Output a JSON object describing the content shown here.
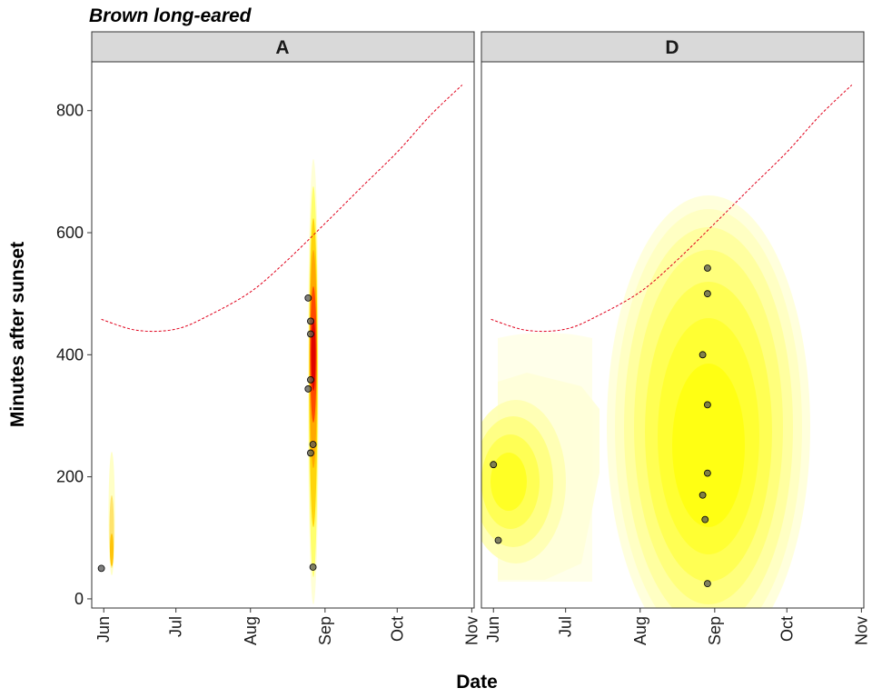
{
  "chart_data": {
    "type": "scatter",
    "title": "Brown long-eared",
    "xlabel": "Date",
    "ylabel": "Minutes after sunset",
    "x_ticks": [
      "Jun",
      "Jul",
      "Aug",
      "Sep",
      "Oct",
      "Nov"
    ],
    "x_tick_dates": [
      "2020-06-01",
      "2020-07-01",
      "2020-08-01",
      "2020-09-01",
      "2020-10-01",
      "2020-11-01"
    ],
    "xlim": [
      "2020-05-27",
      "2020-11-02"
    ],
    "y_ticks": [
      0,
      200,
      400,
      600,
      800
    ],
    "ylim": [
      -15,
      880
    ],
    "grid": false,
    "point_color": "#555555",
    "density_colors": [
      "#ffffe0",
      "#ffff00",
      "#ffa500",
      "#ff0000",
      "#000000"
    ],
    "sunrise_line_color": "#e0001b",
    "panels": [
      {
        "label": "A",
        "points": [
          {
            "x": "2020-05-31",
            "y": 50
          },
          {
            "x": "2020-08-25",
            "y": 493
          },
          {
            "x": "2020-08-26",
            "y": 455
          },
          {
            "x": "2020-08-26",
            "y": 434
          },
          {
            "x": "2020-08-26",
            "y": 359
          },
          {
            "x": "2020-08-25",
            "y": 344
          },
          {
            "x": "2020-08-27",
            "y": 253
          },
          {
            "x": "2020-08-26",
            "y": 239
          },
          {
            "x": "2020-08-27",
            "y": 52
          }
        ],
        "sunrise_curve": [
          {
            "x": "2020-05-31",
            "y": 458
          },
          {
            "x": "2020-06-15",
            "y": 440
          },
          {
            "x": "2020-07-01",
            "y": 442
          },
          {
            "x": "2020-07-15",
            "y": 465
          },
          {
            "x": "2020-08-01",
            "y": 503
          },
          {
            "x": "2020-08-15",
            "y": 550
          },
          {
            "x": "2020-09-01",
            "y": 615
          },
          {
            "x": "2020-09-15",
            "y": 670
          },
          {
            "x": "2020-10-01",
            "y": 732
          },
          {
            "x": "2020-10-15",
            "y": 793
          },
          {
            "x": "2020-10-28",
            "y": 842
          }
        ]
      },
      {
        "label": "D",
        "points": [
          {
            "x": "2020-06-01",
            "y": 220
          },
          {
            "x": "2020-06-03",
            "y": 96
          },
          {
            "x": "2020-08-29",
            "y": 542
          },
          {
            "x": "2020-08-29",
            "y": 500
          },
          {
            "x": "2020-08-27",
            "y": 400
          },
          {
            "x": "2020-08-29",
            "y": 318
          },
          {
            "x": "2020-08-29",
            "y": 206
          },
          {
            "x": "2020-08-27",
            "y": 170
          },
          {
            "x": "2020-08-28",
            "y": 130
          },
          {
            "x": "2020-08-29",
            "y": 25
          }
        ],
        "sunrise_curve": [
          {
            "x": "2020-05-31",
            "y": 458
          },
          {
            "x": "2020-06-15",
            "y": 440
          },
          {
            "x": "2020-07-01",
            "y": 442
          },
          {
            "x": "2020-07-15",
            "y": 465
          },
          {
            "x": "2020-08-01",
            "y": 503
          },
          {
            "x": "2020-08-15",
            "y": 550
          },
          {
            "x": "2020-09-01",
            "y": 615
          },
          {
            "x": "2020-09-15",
            "y": 670
          },
          {
            "x": "2020-10-01",
            "y": 732
          },
          {
            "x": "2020-10-15",
            "y": 793
          },
          {
            "x": "2020-10-28",
            "y": 842
          }
        ]
      }
    ]
  }
}
